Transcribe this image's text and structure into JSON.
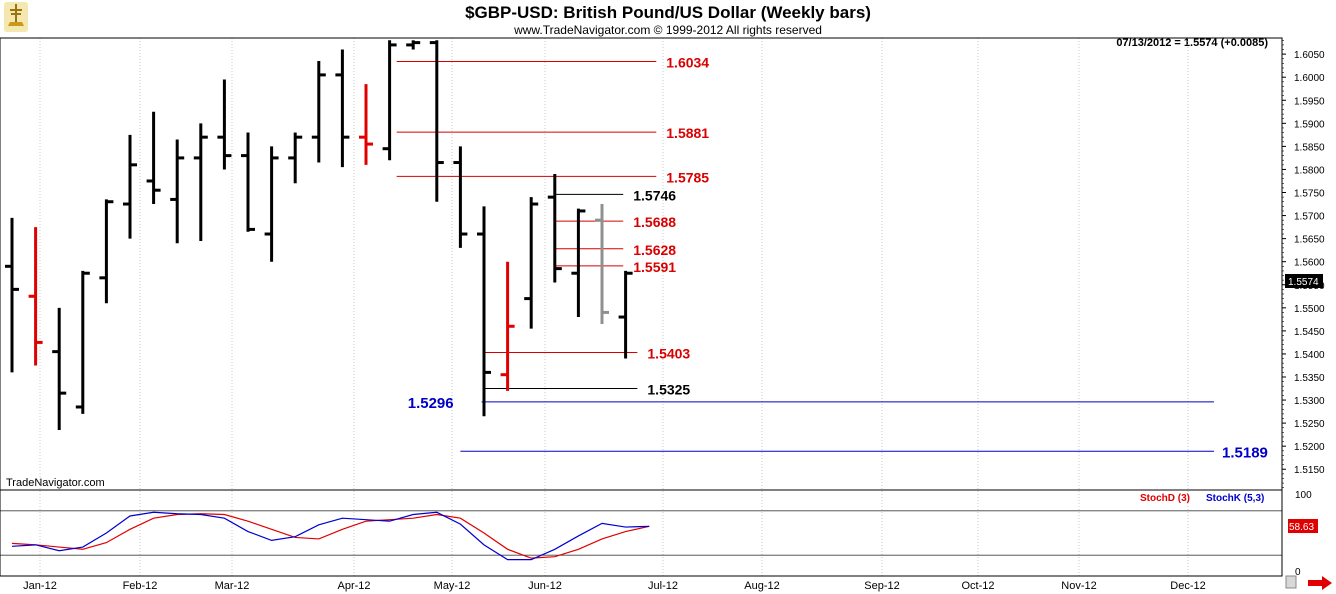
{
  "header": {
    "title": "$GBP-USD:  British Pound/US Dollar  (Weekly bars)",
    "copyright": "www.TradeNavigator.com © 1999-2012 All rights reserved",
    "last_quote": "07/13/2012 = 1.5574 (+0.0085)",
    "watermark": "TradeNavigator.com"
  },
  "colors": {
    "up_bar": "#000000",
    "down_bar": "#e00000",
    "pending_bar": "#909090",
    "level_red": "#d80000",
    "level_black": "#000000",
    "level_blue": "#0000c8",
    "stoch_d": "#e00000",
    "stoch_k": "#0000d0",
    "grid": "#c8c8c8"
  },
  "chart_data": [
    {
      "type": "ohlc",
      "title": "$GBP-USD:  British Pound/US Dollar  (Weekly bars)",
      "ylim": [
        1.5105,
        1.6085
      ],
      "y_ticks": [
        "1.6050",
        "1.6000",
        "1.5950",
        "1.5900",
        "1.5850",
        "1.5800",
        "1.5750",
        "1.5700",
        "1.5650",
        "1.5600",
        "1.5550",
        "1.5500",
        "1.5450",
        "1.5400",
        "1.5350",
        "1.5300",
        "1.5250",
        "1.5200",
        "1.5150"
      ],
      "x_labels": [
        "Jan-12",
        "Feb-12",
        "Mar-12",
        "Apr-12",
        "May-12",
        "Jun-12",
        "Jul-12",
        "Aug-12",
        "Sep-12",
        "Oct-12",
        "Nov-12",
        "Dec-12"
      ],
      "last_price_label": "1.5574",
      "bars": [
        {
          "o": 1.559,
          "h": 1.5695,
          "l": 1.536,
          "c": 1.554,
          "color": "black"
        },
        {
          "o": 1.5525,
          "h": 1.5675,
          "l": 1.5375,
          "c": 1.5425,
          "color": "red"
        },
        {
          "o": 1.5405,
          "h": 1.55,
          "l": 1.5235,
          "c": 1.5315,
          "color": "black"
        },
        {
          "o": 1.5285,
          "h": 1.558,
          "l": 1.527,
          "c": 1.5575,
          "color": "black"
        },
        {
          "o": 1.5565,
          "h": 1.5735,
          "l": 1.551,
          "c": 1.573,
          "color": "black"
        },
        {
          "o": 1.5725,
          "h": 1.5875,
          "l": 1.565,
          "c": 1.581,
          "color": "black"
        },
        {
          "o": 1.5775,
          "h": 1.5925,
          "l": 1.5725,
          "c": 1.5755,
          "color": "black"
        },
        {
          "o": 1.5735,
          "h": 1.5865,
          "l": 1.564,
          "c": 1.5825,
          "color": "black"
        },
        {
          "o": 1.5825,
          "h": 1.59,
          "l": 1.5645,
          "c": 1.587,
          "color": "black"
        },
        {
          "o": 1.587,
          "h": 1.5995,
          "l": 1.58,
          "c": 1.583,
          "color": "black"
        },
        {
          "o": 1.583,
          "h": 1.588,
          "l": 1.5665,
          "c": 1.567,
          "color": "black"
        },
        {
          "o": 1.566,
          "h": 1.585,
          "l": 1.56,
          "c": 1.5825,
          "color": "black"
        },
        {
          "o": 1.5825,
          "h": 1.588,
          "l": 1.577,
          "c": 1.587,
          "color": "black"
        },
        {
          "o": 1.587,
          "h": 1.6035,
          "l": 1.5815,
          "c": 1.6005,
          "color": "black"
        },
        {
          "o": 1.6005,
          "h": 1.606,
          "l": 1.5805,
          "c": 1.587,
          "color": "black"
        },
        {
          "o": 1.587,
          "h": 1.5985,
          "l": 1.581,
          "c": 1.5855,
          "color": "red"
        },
        {
          "o": 1.5845,
          "h": 1.608,
          "l": 1.582,
          "c": 1.607,
          "color": "black"
        },
        {
          "o": 1.607,
          "h": 1.608,
          "l": 1.606,
          "c": 1.6075,
          "color": "black"
        },
        {
          "o": 1.6075,
          "h": 1.608,
          "l": 1.573,
          "c": 1.5815,
          "color": "black"
        },
        {
          "o": 1.5815,
          "h": 1.585,
          "l": 1.563,
          "c": 1.566,
          "color": "black"
        },
        {
          "o": 1.566,
          "h": 1.572,
          "l": 1.5265,
          "c": 1.536,
          "color": "black"
        },
        {
          "o": 1.5355,
          "h": 1.56,
          "l": 1.532,
          "c": 1.546,
          "color": "red"
        },
        {
          "o": 1.552,
          "h": 1.574,
          "l": 1.5455,
          "c": 1.5725,
          "color": "black"
        },
        {
          "o": 1.574,
          "h": 1.579,
          "l": 1.5555,
          "c": 1.5585,
          "color": "black"
        },
        {
          "o": 1.5575,
          "h": 1.5715,
          "l": 1.548,
          "c": 1.571,
          "color": "black"
        },
        {
          "o": 1.569,
          "h": 1.5725,
          "l": 1.5465,
          "c": 1.549,
          "color": "gray"
        },
        {
          "o": 1.548,
          "h": 1.558,
          "l": 1.539,
          "c": 1.5575,
          "color": "black"
        }
      ],
      "levels": [
        {
          "value": 1.6034,
          "label": "1.6034",
          "color": "red",
          "from_bar": 16.3,
          "to_bar": 27.3,
          "label_side": "right"
        },
        {
          "value": 1.5881,
          "label": "1.5881",
          "color": "red",
          "from_bar": 16.3,
          "to_bar": 27.3,
          "label_side": "right"
        },
        {
          "value": 1.5785,
          "label": "1.5785",
          "color": "red",
          "from_bar": 16.3,
          "to_bar": 27.3,
          "label_side": "right"
        },
        {
          "value": 1.5746,
          "label": "1.5746",
          "color": "black",
          "from_bar": 23.0,
          "to_bar": 25.9,
          "label_side": "right"
        },
        {
          "value": 1.5688,
          "label": "1.5688",
          "color": "red",
          "from_bar": 23.0,
          "to_bar": 25.9,
          "label_side": "right"
        },
        {
          "value": 1.5628,
          "label": "1.5628",
          "color": "red",
          "from_bar": 23.0,
          "to_bar": 25.9,
          "label_side": "right"
        },
        {
          "value": 1.5591,
          "label": "1.5591",
          "color": "red",
          "from_bar": 23.0,
          "to_bar": 25.9,
          "label_side": "right"
        },
        {
          "value": 1.5403,
          "label": "1.5403",
          "color": "red",
          "from_bar": 20.0,
          "to_bar": 26.5,
          "label_side": "right"
        },
        {
          "value": 1.5325,
          "label": "1.5325",
          "color": "black",
          "from_bar": 20.0,
          "to_bar": 26.5,
          "label_side": "right"
        },
        {
          "value": 1.5296,
          "label": "1.5296",
          "color": "blue",
          "from_bar": 19.9,
          "to_bar": 47.0,
          "label_side": "left"
        },
        {
          "value": 1.5189,
          "label": "1.5189",
          "color": "blue",
          "from_bar": 19.0,
          "to_bar": 47.0,
          "label_side": "right"
        }
      ]
    },
    {
      "type": "line",
      "title": "",
      "ylim": [
        0,
        100
      ],
      "y_ticks": [
        "100",
        "0"
      ],
      "reference_lines": [
        80,
        20
      ],
      "legend_d": "StochD (3)",
      "legend_k": "StochK (5,3)",
      "last_value_label": "58.63",
      "series": [
        {
          "name": "StochD (3)",
          "color": "red",
          "values": [
            36,
            34,
            31,
            28,
            37,
            55,
            70,
            75,
            76,
            75,
            66,
            55,
            44,
            42,
            55,
            66,
            68,
            70,
            75,
            70,
            50,
            28,
            16,
            18,
            28,
            42,
            52,
            59
          ]
        },
        {
          "name": "StochK (5,3)",
          "color": "blue",
          "values": [
            32,
            34,
            26,
            31,
            50,
            73,
            78,
            76,
            75,
            70,
            52,
            40,
            45,
            61,
            70,
            68,
            66,
            75,
            78,
            62,
            34,
            14,
            14,
            28,
            46,
            63,
            58,
            59
          ]
        }
      ]
    }
  ]
}
